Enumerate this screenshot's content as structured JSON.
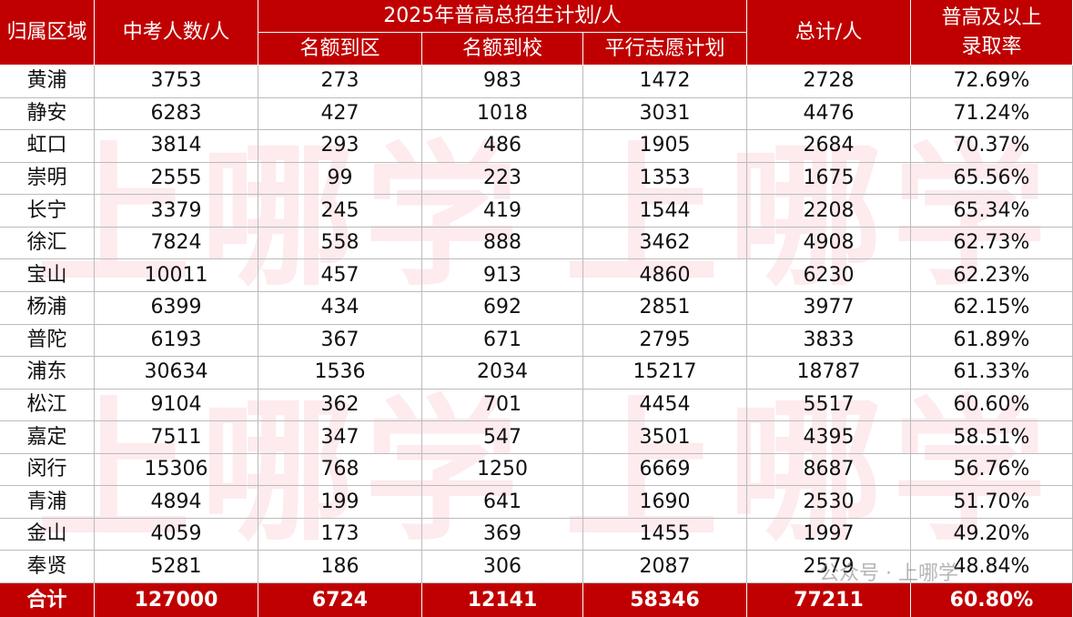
{
  "header": {
    "region": "归属区域",
    "students": "中考人数/人",
    "plan_group": "2025年普高总招生计划/人",
    "plan_columns": [
      "名额到区",
      "名额到校",
      "平行志愿计划"
    ],
    "total": "总计/人",
    "rate": "普高及以上\n录取率"
  },
  "rows": [
    [
      "黄浦",
      "3753",
      "273",
      "983",
      "1472",
      "2728",
      "72.69%"
    ],
    [
      "静安",
      "6283",
      "427",
      "1018",
      "3031",
      "4476",
      "71.24%"
    ],
    [
      "虹口",
      "3814",
      "293",
      "486",
      "1905",
      "2684",
      "70.37%"
    ],
    [
      "崇明",
      "2555",
      "99",
      "223",
      "1353",
      "1675",
      "65.56%"
    ],
    [
      "长宁",
      "3379",
      "245",
      "419",
      "1544",
      "2208",
      "65.34%"
    ],
    [
      "徐汇",
      "7824",
      "558",
      "888",
      "3462",
      "4908",
      "62.73%"
    ],
    [
      "宝山",
      "10011",
      "457",
      "913",
      "4860",
      "6230",
      "62.23%"
    ],
    [
      "杨浦",
      "6399",
      "434",
      "692",
      "2851",
      "3977",
      "62.15%"
    ],
    [
      "普陀",
      "6193",
      "367",
      "671",
      "2795",
      "3833",
      "61.89%"
    ],
    [
      "浦东",
      "30634",
      "1536",
      "2034",
      "15217",
      "18787",
      "61.33%"
    ],
    [
      "松江",
      "9104",
      "362",
      "701",
      "4454",
      "5517",
      "60.60%"
    ],
    [
      "嘉定",
      "7511",
      "347",
      "547",
      "3501",
      "4395",
      "58.51%"
    ],
    [
      "闵行",
      "15306",
      "768",
      "1250",
      "6669",
      "8687",
      "56.76%"
    ],
    [
      "青浦",
      "4894",
      "199",
      "641",
      "1690",
      "2530",
      "51.70%"
    ],
    [
      "金山",
      "4059",
      "173",
      "369",
      "1455",
      "1997",
      "49.20%"
    ],
    [
      "奉贤",
      "5281",
      "186",
      "306",
      "2087",
      "2579",
      "48.84%"
    ]
  ],
  "total_row": [
    "合计",
    "127000",
    "6724",
    "12141",
    "58346",
    "77211",
    "60.80%"
  ],
  "watermark": "上哪学",
  "footer_mark": "公众号 · 上哪学"
}
